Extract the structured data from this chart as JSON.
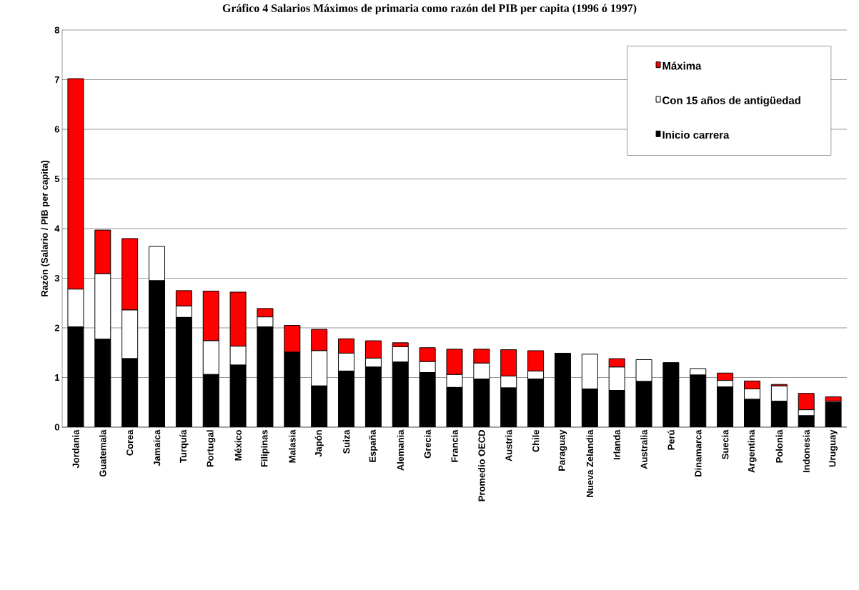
{
  "chart_data": {
    "type": "bar",
    "title": "Gráfico 4 Salarios Máximos de primaria como razón del PIB per capita (1996 ó 1997)",
    "ylabel": "Razón (Salario / PIB per capita)",
    "categories": [
      "Jordania",
      "Guatemala",
      "Corea",
      "Jamaica",
      "Turquía",
      "Portugal",
      "México",
      "Filipinas",
      "Malasia",
      "Japón",
      "Suiza",
      "España",
      "Alemania",
      "Grecia",
      "Francia",
      "Promedio OECD",
      "Austria",
      "Chile",
      "Paraguay",
      "Nueva Zelandia",
      "Irlanda",
      "Australia",
      "Perú",
      "Dinamarca",
      "Suecia",
      "Argentina",
      "Polonia",
      "Indonesia",
      "Uruguay"
    ],
    "stacked": true,
    "series": [
      {
        "name": "Inicio carrera",
        "color": "#000000",
        "values": [
          2.02,
          1.77,
          1.38,
          2.95,
          2.21,
          1.06,
          1.25,
          2.02,
          1.51,
          0.83,
          1.13,
          1.21,
          1.31,
          1.1,
          0.8,
          0.97,
          0.79,
          0.97,
          1.49,
          0.77,
          0.74,
          0.92,
          1.3,
          1.05,
          0.81,
          0.56,
          0.52,
          0.23,
          0.5
        ]
      },
      {
        "name": "Con 15 años de antigüedad",
        "color": "#ffffff",
        "values": [
          0.76,
          1.32,
          0.98,
          0.69,
          0.23,
          0.68,
          0.38,
          0.2,
          0,
          0.71,
          0.36,
          0.18,
          0.31,
          0.22,
          0.26,
          0.32,
          0.24,
          0.16,
          0,
          0.7,
          0.47,
          0.44,
          0,
          0.13,
          0.13,
          0.21,
          0.31,
          0.12,
          0.02
        ]
      },
      {
        "name": "Máxima",
        "color": "#ff0000",
        "values": [
          4.24,
          0.88,
          1.44,
          0,
          0.31,
          1.0,
          1.09,
          0.17,
          0.54,
          0.43,
          0.29,
          0.35,
          0.08,
          0.28,
          0.51,
          0.28,
          0.53,
          0.41,
          0,
          0,
          0.17,
          0,
          0,
          0,
          0.15,
          0.16,
          0.03,
          0.33,
          0.09
        ]
      }
    ],
    "ylim": [
      0,
      8
    ],
    "yticks": [
      0,
      1,
      2,
      3,
      4,
      5,
      6,
      7,
      8
    ],
    "grid": "y",
    "legend": "top right"
  }
}
